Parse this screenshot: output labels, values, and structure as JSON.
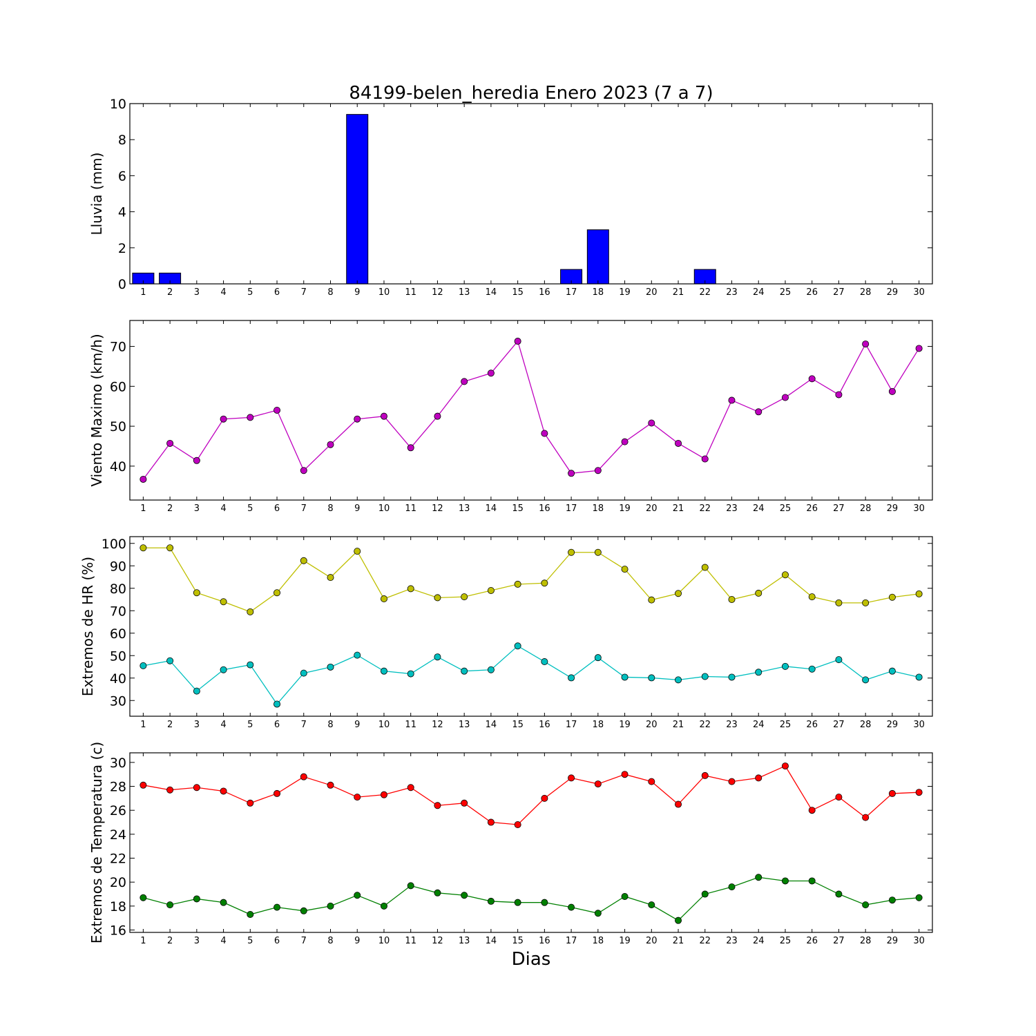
{
  "figure_title": "84199-belen_heredia Enero 2023  (7 a 7)",
  "xlabel": "Dias",
  "chart_data": [
    {
      "type": "bar",
      "ylabel": "Lluvia (mm)",
      "ylim": [
        0,
        10
      ],
      "yticks": [
        0,
        2,
        4,
        6,
        8,
        10
      ],
      "x": [
        1,
        2,
        3,
        4,
        5,
        6,
        7,
        8,
        9,
        10,
        11,
        12,
        13,
        14,
        15,
        16,
        17,
        18,
        19,
        20,
        21,
        22,
        23,
        24,
        25,
        26,
        27,
        28,
        29,
        30
      ],
      "series": [
        {
          "color": "#0000ff",
          "values": [
            0.6,
            0.6,
            0,
            0,
            0,
            0,
            0,
            0,
            9.4,
            0,
            0,
            0,
            0,
            0,
            0,
            0,
            0.8,
            3.0,
            0,
            0,
            0,
            0.8,
            0,
            0,
            0,
            0,
            0,
            0,
            0,
            0
          ]
        }
      ]
    },
    {
      "type": "line",
      "ylabel": "Viento Maximo (km/h)",
      "ylim": [
        31.5,
        76.5
      ],
      "yticks": [
        40,
        50,
        60,
        70
      ],
      "x": [
        1,
        2,
        3,
        4,
        5,
        6,
        7,
        8,
        9,
        10,
        11,
        12,
        13,
        14,
        15,
        16,
        17,
        18,
        19,
        20,
        21,
        22,
        23,
        24,
        25,
        26,
        27,
        28,
        29,
        30
      ],
      "series": [
        {
          "color": "#bf00bf",
          "values": [
            36.7,
            45.7,
            41.4,
            51.8,
            52.2,
            54.0,
            38.9,
            45.4,
            51.8,
            52.5,
            44.6,
            52.5,
            61.2,
            63.3,
            71.3,
            48.2,
            38.2,
            38.9,
            46.1,
            50.8,
            45.7,
            41.8,
            56.5,
            53.6,
            57.2,
            61.9,
            57.9,
            70.6,
            58.7,
            69.5
          ]
        }
      ]
    },
    {
      "type": "line",
      "ylabel": "Extremos de HR (%)",
      "ylim": [
        23,
        103
      ],
      "yticks": [
        30,
        40,
        50,
        60,
        70,
        80,
        90,
        100
      ],
      "x": [
        1,
        2,
        3,
        4,
        5,
        6,
        7,
        8,
        9,
        10,
        11,
        12,
        13,
        14,
        15,
        16,
        17,
        18,
        19,
        20,
        21,
        22,
        23,
        24,
        25,
        26,
        27,
        28,
        29,
        30
      ],
      "series": [
        {
          "color": "#bfbf00",
          "values": [
            98,
            98,
            78,
            74,
            69.5,
            78,
            92.3,
            84.8,
            96.5,
            75.3,
            79.8,
            75.8,
            76.2,
            79,
            81.8,
            82.3,
            96,
            96,
            88.5,
            74.8,
            77.7,
            89.3,
            75,
            77.8,
            86,
            76.2,
            73.5,
            73.5,
            76,
            77.5
          ]
        },
        {
          "color": "#00bfbf",
          "values": [
            45.5,
            47.7,
            34.2,
            43.7,
            45.9,
            28.4,
            42.2,
            44.9,
            50.2,
            43.1,
            41.9,
            49.4,
            43.1,
            43.7,
            54.3,
            47.3,
            40.1,
            49.1,
            40.4,
            40.1,
            39.2,
            40.7,
            40.4,
            42.6,
            45.2,
            44.0,
            48.2,
            39.2,
            43.1,
            40.4
          ]
        }
      ]
    },
    {
      "type": "line",
      "ylabel": "Extremos de Temperatura (c)",
      "ylim": [
        15.8,
        30.8
      ],
      "yticks": [
        16,
        18,
        20,
        22,
        24,
        26,
        28,
        30
      ],
      "x": [
        1,
        2,
        3,
        4,
        5,
        6,
        7,
        8,
        9,
        10,
        11,
        12,
        13,
        14,
        15,
        16,
        17,
        18,
        19,
        20,
        21,
        22,
        23,
        24,
        25,
        26,
        27,
        28,
        29,
        30
      ],
      "series": [
        {
          "color": "#ff0000",
          "values": [
            28.1,
            27.7,
            27.9,
            27.6,
            26.6,
            27.4,
            28.8,
            28.1,
            27.1,
            27.3,
            27.9,
            26.4,
            26.6,
            25.0,
            24.8,
            27.0,
            28.7,
            28.2,
            29.0,
            28.4,
            26.5,
            28.9,
            28.4,
            28.7,
            29.7,
            26.0,
            27.1,
            25.4,
            27.4,
            27.5
          ]
        },
        {
          "color": "#008000",
          "values": [
            18.7,
            18.1,
            18.6,
            18.3,
            17.3,
            17.9,
            17.6,
            18.0,
            18.9,
            18.0,
            19.7,
            19.1,
            18.9,
            18.4,
            18.3,
            18.3,
            17.9,
            17.4,
            18.8,
            18.1,
            16.8,
            19.0,
            19.6,
            20.4,
            20.1,
            20.1,
            19.0,
            18.1,
            18.5,
            18.7
          ]
        }
      ]
    }
  ]
}
